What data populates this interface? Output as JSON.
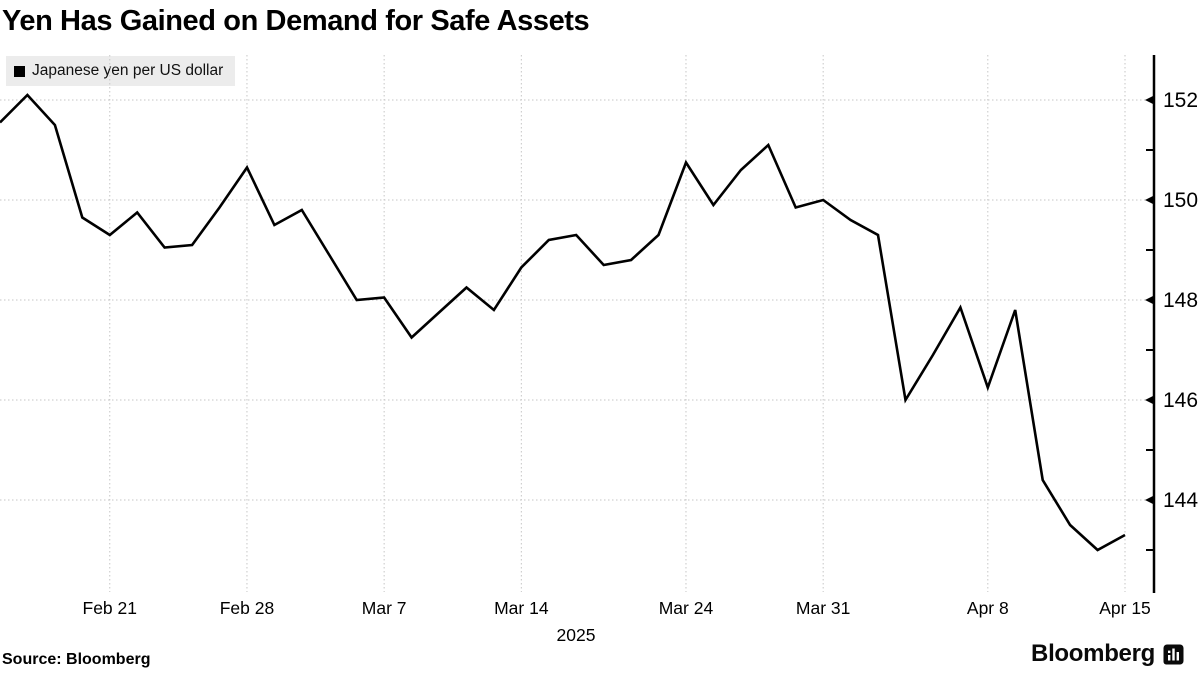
{
  "header": {
    "title": "Yen Has Gained on Demand for Safe Assets"
  },
  "legend": {
    "label": "Japanese yen per US dollar",
    "swatch_color": "#000000",
    "background": "#ececec"
  },
  "footer": {
    "source": "Source: Bloomberg",
    "logo_text": "Bloomberg",
    "logo_icon": "bloomberg-bars-icon"
  },
  "chart_data": {
    "type": "line",
    "title": "Yen Has Gained on Demand for Safe Assets",
    "series_name": "Japanese yen per US dollar",
    "x": [
      "Feb 17",
      "Feb 18",
      "Feb 19",
      "Feb 20",
      "Feb 21",
      "Feb 24",
      "Feb 25",
      "Feb 26",
      "Feb 27",
      "Feb 28",
      "Mar 3",
      "Mar 4",
      "Mar 5",
      "Mar 6",
      "Mar 7",
      "Mar 10",
      "Mar 11",
      "Mar 12",
      "Mar 13",
      "Mar 14",
      "Mar 17",
      "Mar 18",
      "Mar 19",
      "Mar 20",
      "Mar 21",
      "Mar 24",
      "Mar 25",
      "Mar 26",
      "Mar 27",
      "Mar 28",
      "Mar 31",
      "Apr 1",
      "Apr 2",
      "Apr 3",
      "Apr 4",
      "Apr 7",
      "Apr 8",
      "Apr 9",
      "Apr 10",
      "Apr 11",
      "Apr 14",
      "Apr 15"
    ],
    "values": [
      151.55,
      152.1,
      151.5,
      149.65,
      149.3,
      149.75,
      149.05,
      149.1,
      149.85,
      150.65,
      149.5,
      149.8,
      148.9,
      148.0,
      148.05,
      147.25,
      147.75,
      148.25,
      147.8,
      148.65,
      149.2,
      149.3,
      148.7,
      148.8,
      149.3,
      150.75,
      149.9,
      150.6,
      151.1,
      149.85,
      150.0,
      149.6,
      149.3,
      146.0,
      146.9,
      147.85,
      146.25,
      147.8,
      144.4,
      143.5,
      143.0,
      143.3
    ],
    "x_tick_labels": [
      {
        "label": "Feb 21",
        "day_index": 4
      },
      {
        "label": "Feb 28",
        "day_index": 9
      },
      {
        "label": "Mar 7",
        "day_index": 14
      },
      {
        "label": "Mar 14",
        "day_index": 19
      },
      {
        "label": "Mar 24",
        "day_index": 25
      },
      {
        "label": "Mar 31",
        "day_index": 30
      },
      {
        "label": "Apr 8",
        "day_index": 36
      },
      {
        "label": "Apr 15",
        "day_index": 41
      }
    ],
    "year_label": "2025",
    "y_ticks_major": [
      152,
      150,
      148,
      146,
      144
    ],
    "y_ticks_minor": [
      151,
      149,
      147,
      145,
      143
    ],
    "ylim": [
      142.85,
      153.0
    ],
    "xlabel": "",
    "ylabel": "",
    "grid": "both-dotted",
    "legend_position": "top-left",
    "axis_side": "right",
    "line_color": "#000000",
    "grid_color": "#c6c6c6",
    "axis_color": "#000000"
  }
}
